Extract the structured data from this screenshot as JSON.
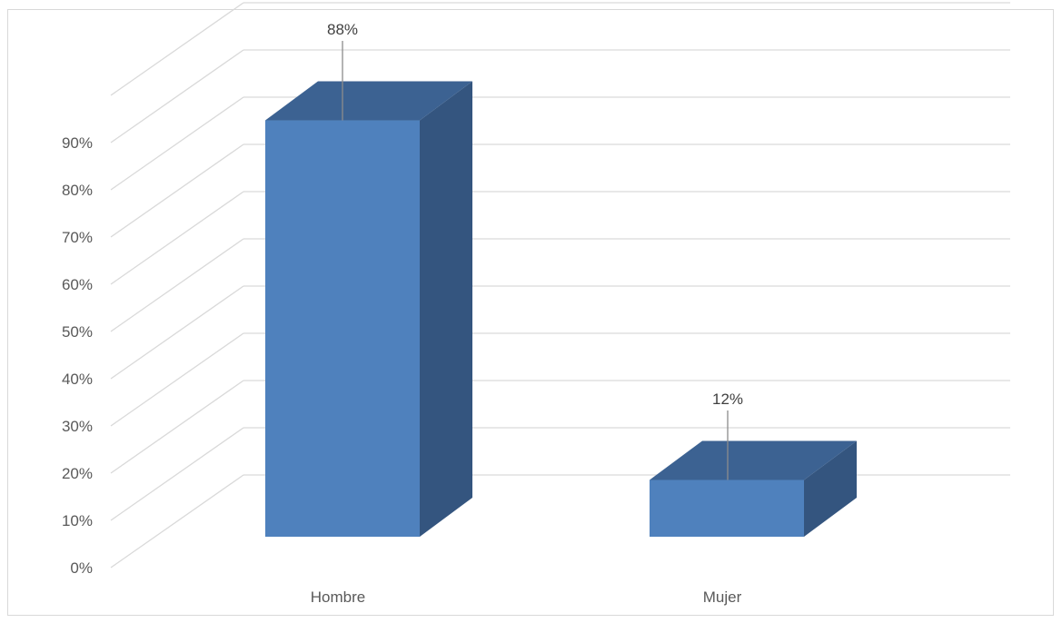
{
  "chart_data": {
    "type": "bar",
    "style": "3d-column",
    "categories": [
      "Hombre",
      "Mujer"
    ],
    "values": [
      88,
      12
    ],
    "data_labels": [
      "88%",
      "12%"
    ],
    "yticks": [
      "0%",
      "10%",
      "20%",
      "30%",
      "40%",
      "50%",
      "60%",
      "70%",
      "80%",
      "90%"
    ],
    "ylim": [
      0,
      100
    ],
    "grid": true,
    "legend": "none",
    "colors": {
      "front": "#4f81bd",
      "top": "#3c6292",
      "side": "#34557f",
      "grid": "#d9d9d9",
      "leader": "#8c8c8c"
    }
  }
}
